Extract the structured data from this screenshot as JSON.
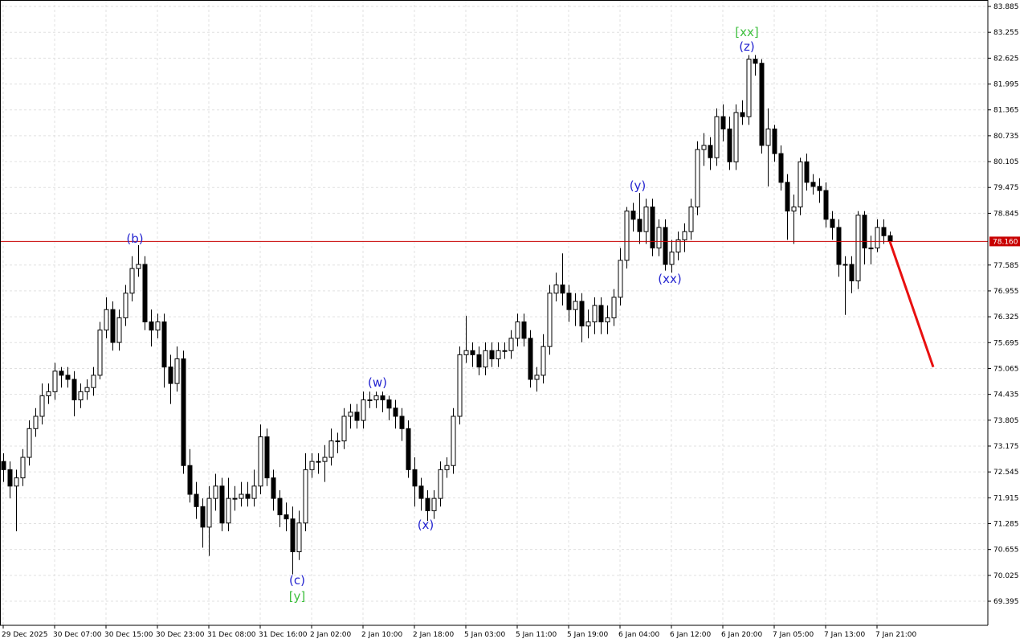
{
  "chart_data": {
    "type": "candlestick",
    "categories": [
      "29 Dec 2025",
      null,
      null,
      null,
      null,
      null,
      null,
      null,
      "30 Dec 07:00",
      null,
      null,
      null,
      null,
      null,
      null,
      null,
      "30 Dec 15:00",
      null,
      null,
      null,
      null,
      null,
      null,
      null,
      "30 Dec 23:00",
      null,
      null,
      null,
      null,
      null,
      null,
      null,
      "31 Dec 08:00",
      null,
      null,
      null,
      null,
      null,
      null,
      null,
      "31 Dec 16:00",
      null,
      null,
      null,
      null,
      null,
      null,
      null,
      "2 Jan 02:00",
      null,
      null,
      null,
      null,
      null,
      null,
      null,
      "2 Jan 10:00",
      null,
      null,
      null,
      null,
      null,
      null,
      null,
      "2 Jan 18:00",
      null,
      null,
      null,
      null,
      null,
      null,
      null,
      "5 Jan 03:00",
      null,
      null,
      null,
      null,
      null,
      null,
      null,
      "5 Jan 11:00",
      null,
      null,
      null,
      null,
      null,
      null,
      null,
      "5 Jan 19:00",
      null,
      null,
      null,
      null,
      null,
      null,
      null,
      "6 Jan 04:00",
      null,
      null,
      null,
      null,
      null,
      null,
      null,
      "6 Jan 12:00",
      null,
      null,
      null,
      null,
      null,
      null,
      null,
      "6 Jan 20:00",
      null,
      null,
      null,
      null,
      null,
      null,
      null,
      "7 Jan 05:00",
      null,
      null,
      null,
      null,
      null,
      null,
      null,
      "7 Jan 13:00",
      null,
      null,
      null,
      null,
      null,
      null,
      null,
      "7 Jan 21:00",
      null,
      null
    ],
    "open": [
      72.8,
      72.6,
      72.2,
      72.4,
      72.9,
      73.6,
      73.9,
      74.4,
      74.5,
      75.0,
      74.9,
      74.8,
      74.3,
      74.5,
      74.6,
      74.9,
      76.0,
      76.5,
      75.7,
      76.3,
      76.9,
      77.5,
      77.6,
      76.2,
      76.0,
      76.2,
      75.1,
      74.7,
      75.3,
      72.7,
      72.0,
      71.7,
      71.2,
      71.9,
      72.2,
      71.3,
      71.9,
      71.9,
      72.0,
      71.9,
      72.2,
      73.4,
      72.4,
      71.9,
      71.5,
      71.4,
      70.6,
      71.3,
      72.6,
      72.8,
      72.8,
      72.9,
      73.3,
      73.3,
      73.9,
      74.0,
      73.8,
      74.3,
      74.3,
      74.4,
      74.3,
      74.1,
      73.9,
      73.6,
      72.6,
      72.2,
      71.9,
      71.6,
      71.9,
      72.6,
      72.7,
      73.9,
      75.4,
      75.5,
      75.4,
      75.1,
      75.5,
      75.3,
      75.5,
      75.5,
      75.8,
      76.2,
      75.8,
      74.8,
      74.9,
      75.6,
      76.9,
      77.1,
      76.9,
      76.5,
      76.7,
      76.1,
      76.2,
      76.6,
      76.2,
      76.3,
      76.8,
      77.7,
      78.9,
      78.7,
      78.4,
      79.0,
      78.0,
      78.5,
      77.6,
      77.9,
      78.2,
      78.4,
      79.0,
      80.4,
      80.5,
      80.2,
      81.2,
      80.9,
      80.1,
      81.3,
      81.2,
      82.6,
      82.5,
      80.5,
      80.9,
      80.3,
      79.6,
      78.9,
      79.0,
      80.1,
      79.6,
      79.5,
      79.4,
      78.7,
      78.5,
      77.6,
      77.6,
      77.2,
      78.8,
      78.0,
      78.0,
      78.5,
      78.3
    ],
    "high": [
      73.0,
      72.8,
      72.6,
      73.1,
      73.8,
      74.1,
      74.7,
      74.7,
      75.2,
      75.1,
      75.1,
      75.0,
      74.7,
      74.8,
      75.1,
      76.2,
      76.8,
      76.7,
      76.5,
      77.1,
      77.8,
      78.07,
      77.8,
      76.5,
      76.4,
      76.4,
      75.4,
      75.6,
      75.5,
      73.1,
      72.3,
      71.9,
      72.2,
      72.5,
      72.4,
      72.4,
      72.2,
      72.3,
      72.3,
      72.6,
      73.7,
      73.6,
      72.6,
      72.1,
      71.8,
      71.7,
      71.6,
      73.0,
      73.0,
      73.0,
      73.2,
      73.6,
      73.5,
      74.1,
      74.2,
      74.2,
      74.5,
      74.5,
      74.5,
      74.5,
      74.4,
      74.3,
      74.1,
      73.8,
      72.9,
      72.4,
      72.1,
      72.1,
      72.8,
      72.9,
      74.1,
      75.6,
      76.35,
      75.7,
      75.6,
      75.7,
      75.7,
      75.7,
      75.7,
      76.0,
      76.4,
      76.4,
      76.0,
      75.1,
      75.9,
      77.1,
      77.4,
      77.87,
      77.1,
      76.9,
      76.9,
      76.5,
      76.8,
      76.8,
      76.6,
      77.0,
      78.0,
      79.0,
      79.1,
      79.34,
      79.2,
      79.2,
      78.7,
      78.7,
      78.2,
      78.4,
      78.6,
      79.2,
      80.6,
      80.8,
      80.7,
      81.4,
      81.5,
      81.2,
      81.5,
      81.6,
      82.7,
      82.7,
      82.6,
      81.4,
      81.0,
      80.5,
      79.8,
      79.3,
      80.2,
      80.3,
      79.8,
      79.7,
      79.6,
      78.9,
      78.7,
      77.8,
      77.8,
      78.9,
      78.9,
      78.3,
      78.7,
      78.7,
      78.4
    ],
    "low": [
      72.3,
      71.9,
      71.1,
      72.2,
      72.7,
      73.4,
      73.7,
      74.2,
      74.3,
      74.6,
      74.6,
      73.9,
      74.1,
      74.3,
      74.4,
      74.8,
      75.8,
      75.5,
      75.5,
      76.1,
      76.7,
      77.3,
      76.0,
      75.6,
      75.8,
      74.6,
      74.2,
      74.5,
      72.5,
      71.8,
      71.4,
      70.7,
      70.5,
      71.6,
      71.1,
      71.1,
      71.6,
      71.7,
      71.7,
      71.7,
      72.0,
      72.2,
      71.6,
      71.2,
      71.1,
      70.05,
      70.4,
      71.1,
      72.4,
      72.5,
      72.3,
      72.7,
      73.0,
      73.1,
      73.6,
      73.6,
      73.6,
      74.1,
      74.1,
      74.0,
      73.8,
      73.6,
      73.3,
      72.4,
      71.7,
      71.6,
      71.35,
      71.4,
      71.7,
      72.4,
      72.5,
      73.7,
      75.2,
      75.1,
      74.9,
      74.9,
      75.1,
      75.1,
      75.3,
      75.3,
      75.6,
      75.6,
      74.6,
      74.5,
      74.7,
      75.4,
      76.7,
      76.6,
      76.2,
      76.1,
      75.7,
      75.8,
      75.9,
      75.9,
      75.9,
      76.1,
      76.6,
      77.5,
      78.4,
      78.1,
      78.1,
      77.8,
      77.8,
      77.45,
      77.4,
      77.7,
      77.9,
      78.2,
      78.8,
      80.0,
      79.9,
      80.0,
      80.6,
      79.9,
      79.9,
      81.0,
      81.0,
      82.2,
      80.3,
      79.5,
      80.1,
      79.4,
      78.2,
      78.1,
      78.8,
      79.4,
      79.3,
      79.1,
      78.5,
      78.2,
      77.3,
      76.37,
      76.9,
      77.0,
      77.6,
      77.6,
      77.9,
      78.1,
      78.1
    ],
    "close": [
      72.6,
      72.2,
      72.4,
      72.9,
      73.6,
      73.9,
      74.4,
      74.5,
      75.0,
      74.9,
      74.8,
      74.3,
      74.5,
      74.6,
      74.9,
      76.0,
      76.5,
      75.7,
      76.3,
      76.9,
      77.5,
      77.6,
      76.2,
      76.0,
      76.2,
      75.1,
      74.7,
      75.3,
      72.7,
      72.0,
      71.7,
      71.2,
      71.9,
      72.2,
      71.3,
      71.9,
      71.9,
      72.0,
      71.9,
      72.2,
      73.4,
      72.4,
      71.9,
      71.5,
      71.4,
      70.6,
      71.3,
      72.6,
      72.8,
      72.8,
      72.9,
      73.3,
      73.3,
      73.9,
      74.0,
      73.8,
      74.3,
      74.3,
      74.4,
      74.3,
      74.1,
      73.9,
      73.6,
      72.6,
      72.2,
      71.9,
      71.6,
      71.9,
      72.6,
      72.7,
      73.9,
      75.4,
      75.5,
      75.4,
      75.1,
      75.5,
      75.3,
      75.5,
      75.5,
      75.8,
      76.2,
      75.8,
      74.8,
      74.9,
      75.6,
      76.9,
      77.1,
      76.9,
      76.5,
      76.7,
      76.1,
      76.2,
      76.6,
      76.2,
      76.3,
      76.8,
      77.7,
      78.9,
      78.7,
      78.4,
      79.0,
      78.0,
      78.5,
      77.6,
      77.9,
      78.2,
      78.4,
      79.0,
      80.4,
      80.5,
      80.2,
      81.2,
      80.9,
      80.1,
      81.3,
      81.2,
      82.6,
      82.5,
      80.5,
      80.9,
      80.3,
      79.6,
      78.9,
      79.0,
      80.1,
      79.6,
      79.5,
      79.4,
      78.7,
      78.5,
      77.6,
      77.6,
      77.2,
      78.8,
      78.0,
      78.0,
      78.5,
      78.3,
      78.16
    ],
    "up_color": "#ffffff",
    "down_color": "#000000",
    "ylim": [
      68.808,
      84.042
    ],
    "yticks": [
      83.885,
      83.255,
      82.625,
      81.995,
      81.365,
      80.735,
      80.105,
      79.475,
      78.845,
      77.585,
      76.955,
      76.325,
      75.695,
      75.065,
      74.435,
      73.805,
      73.175,
      72.545,
      71.915,
      71.285,
      70.655,
      70.025,
      69.395
    ],
    "grid": true,
    "current_price": {
      "value": 78.16,
      "label": "78.160",
      "color": "#c80000"
    },
    "forecast": {
      "x": [
        138,
        144.75
      ],
      "values": [
        78.16,
        75.1
      ],
      "color": "#e81010"
    },
    "annotations": [
      {
        "text": "(b)",
        "x": 20.5,
        "y": 78.23,
        "color": "#2424d0"
      },
      {
        "text": "(c)",
        "x": 45.75,
        "y": 69.9,
        "color": "#2424d0"
      },
      {
        "text": "[y]",
        "x": 45.75,
        "y": 69.51,
        "color": "#3cbf3c"
      },
      {
        "text": "(w)",
        "x": 58.25,
        "y": 74.72,
        "color": "#2424d0"
      },
      {
        "text": "(x)",
        "x": 65.75,
        "y": 71.26,
        "color": "#2424d0"
      },
      {
        "text": "(y)",
        "x": 98.75,
        "y": 79.52,
        "color": "#2424d0"
      },
      {
        "text": "(xx)",
        "x": 103.75,
        "y": 77.25,
        "color": "#2424d0"
      },
      {
        "text": "(z)",
        "x": 115.75,
        "y": 82.91,
        "color": "#2424d0"
      },
      {
        "text": "[xx]",
        "x": 115.75,
        "y": 83.26,
        "color": "#3cbf3c"
      }
    ]
  }
}
